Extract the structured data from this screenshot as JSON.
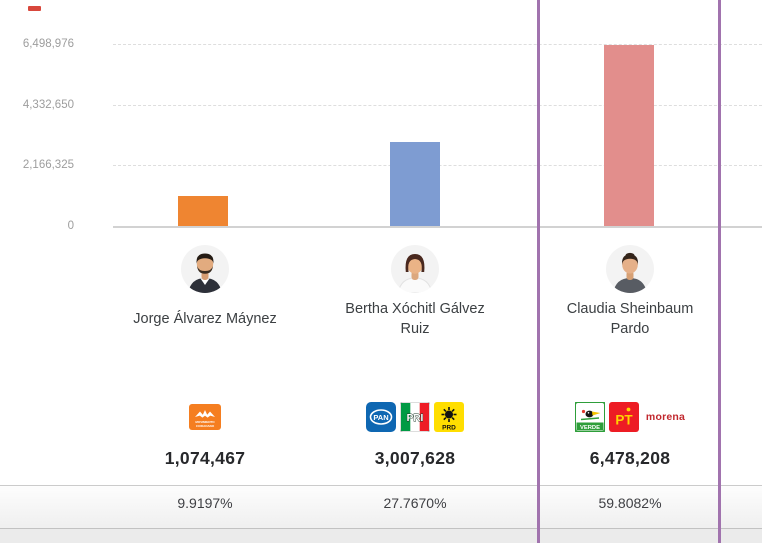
{
  "chart_data": {
    "type": "bar",
    "categories": [
      "Jorge Álvarez Máynez",
      "Bertha Xóchitl Gálvez Ruiz",
      "Claudia Sheinbaum Pardo"
    ],
    "values": [
      1074467,
      3007628,
      6478208
    ],
    "value_labels": [
      "1,074,467",
      "3,007,628",
      "6,478,208"
    ],
    "percent_labels": [
      "9.9197%",
      "27.7670%",
      "59.8082%"
    ],
    "bar_colors": [
      "#EF8531",
      "#7E9CD2",
      "#E28E8C"
    ],
    "ylim": [
      0,
      6498976
    ],
    "y_tick_values": [
      6498976,
      4332650,
      2166325,
      0
    ],
    "y_tick_labels": [
      "6,498,976",
      "4,332,650",
      "2,166,325",
      "0"
    ],
    "grid": "horizontal-dashed",
    "legend": "none",
    "highlighted_index": 2,
    "highlight_color": "#A173AE"
  },
  "candidates": [
    {
      "name": "Jorge Álvarez Máynez",
      "display_name": "Jorge Álvarez Máynez",
      "votes": "1,074,467",
      "percent": "9.9197%",
      "parties": [
        "MC"
      ]
    },
    {
      "name": "Bertha Xóchitl Gálvez Ruiz",
      "display_name": "Bertha Xóchitl Gálvez\nRuiz",
      "votes": "3,007,628",
      "percent": "27.7670%",
      "parties": [
        "PAN",
        "PRI",
        "PRD"
      ]
    },
    {
      "name": "Claudia Sheinbaum Pardo",
      "display_name": "Claudia Sheinbaum\nPardo",
      "votes": "6,478,208",
      "percent": "59.8082%",
      "parties": [
        "PVEM",
        "PT",
        "MORENA"
      ]
    }
  ],
  "party_logos": {
    "mc": {
      "line1": "MOVIMIENTO",
      "line2": "CIUDADANO",
      "bg": "#F57E20"
    },
    "pan": {
      "label": "PAN",
      "bg": "#0E67B2"
    },
    "pri": {
      "label": "PRI",
      "green": "#009A44",
      "red": "#EE1C25"
    },
    "prd": {
      "label": "PRD",
      "bg": "#FFDE00"
    },
    "pvem": {
      "label": "VERDE",
      "bg": "#2E9E3A"
    },
    "pt": {
      "label": "PT",
      "bg": "#ED1C24",
      "letter_color": "#FFD400"
    },
    "morena": {
      "label": "morena",
      "color": "#C1272D"
    }
  }
}
